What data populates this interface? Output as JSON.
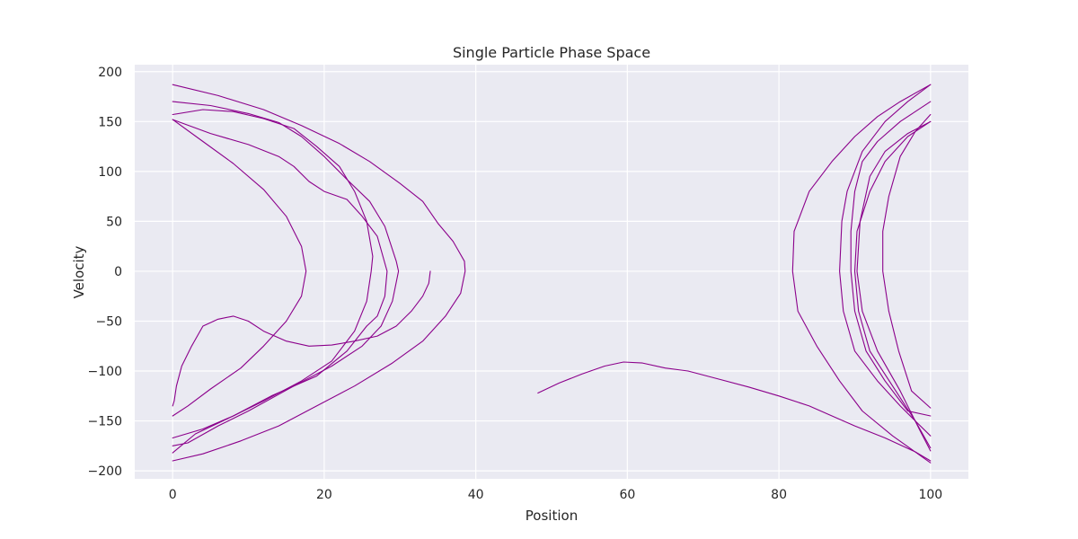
{
  "chart_data": {
    "type": "scatter",
    "title": "Single Particle Phase Space",
    "xlabel": "Position",
    "ylabel": "Velocity",
    "xlim": [
      -5,
      105
    ],
    "ylim": [
      -208,
      207
    ],
    "xticks": [
      0,
      20,
      40,
      60,
      80,
      100
    ],
    "yticks": [
      200,
      150,
      100,
      50,
      0,
      -50,
      -100,
      -150,
      -200
    ],
    "grid": true,
    "background": "#eaeaf2",
    "grid_color": "#ffffff",
    "series": [
      {
        "color": "#8b008b",
        "segments": [
          [
            [
              34.0,
              0
            ],
            [
              33.8,
              -12
            ],
            [
              33,
              -25
            ],
            [
              31.5,
              -40
            ],
            [
              29.5,
              -55
            ],
            [
              27,
              -65
            ],
            [
              24,
              -70
            ],
            [
              21,
              -74
            ],
            [
              18,
              -75
            ],
            [
              15,
              -70
            ],
            [
              12,
              -60
            ],
            [
              10,
              -50
            ],
            [
              8,
              -45
            ],
            [
              6,
              -48
            ],
            [
              4,
              -55
            ],
            [
              2.5,
              -75
            ],
            [
              1.2,
              -95
            ],
            [
              0.5,
              -115
            ],
            [
              0.2,
              -130
            ],
            [
              0,
              -135
            ]
          ],
          [
            [
              0,
              152
            ],
            [
              4,
              130
            ],
            [
              8,
              108
            ],
            [
              12,
              82
            ],
            [
              15,
              55
            ],
            [
              17,
              25
            ],
            [
              17.6,
              0
            ],
            [
              17,
              -25
            ],
            [
              15,
              -50
            ],
            [
              12,
              -75
            ],
            [
              9,
              -97
            ],
            [
              5,
              -118
            ],
            [
              2,
              -135
            ],
            [
              0,
              -145
            ]
          ],
          [
            [
              0,
              157
            ],
            [
              4,
              162
            ],
            [
              8,
              160
            ],
            [
              12,
              153
            ],
            [
              16,
              143
            ],
            [
              19,
              125
            ],
            [
              22,
              105
            ],
            [
              24,
              80
            ],
            [
              25.6,
              50
            ],
            [
              26.4,
              15
            ],
            [
              26.2,
              0
            ],
            [
              25.6,
              -30
            ],
            [
              24,
              -60
            ],
            [
              21,
              -90
            ],
            [
              17,
              -110
            ],
            [
              12,
              -130
            ],
            [
              8,
              -145
            ],
            [
              4,
              -158
            ],
            [
              0,
              -167
            ]
          ],
          [
            [
              0,
              170
            ],
            [
              5,
              166
            ],
            [
              10,
              158
            ],
            [
              14,
              149
            ],
            [
              17,
              135
            ],
            [
              20,
              115
            ],
            [
              23,
              92
            ],
            [
              26,
              70
            ],
            [
              28,
              45
            ],
            [
              29.5,
              10
            ],
            [
              29.8,
              0
            ],
            [
              29,
              -30
            ],
            [
              27.5,
              -55
            ],
            [
              25,
              -75
            ],
            [
              21,
              -95
            ],
            [
              16,
              -115
            ],
            [
              10,
              -140
            ],
            [
              6,
              -155
            ],
            [
              2,
              -172
            ],
            [
              0,
              -175
            ]
          ],
          [
            [
              0,
              152
            ],
            [
              5,
              138
            ],
            [
              10,
              127
            ],
            [
              14,
              115
            ],
            [
              16,
              105
            ],
            [
              18,
              90
            ],
            [
              20,
              80
            ],
            [
              23,
              72
            ],
            [
              25,
              55
            ],
            [
              27,
              35
            ],
            [
              28.3,
              0
            ],
            [
              28,
              -25
            ],
            [
              27,
              -45
            ],
            [
              25.6,
              -55
            ],
            [
              23,
              -80
            ],
            [
              19,
              -105
            ],
            [
              13,
              -125
            ],
            [
              8,
              -145
            ],
            [
              3,
              -163
            ],
            [
              0,
              -182
            ]
          ],
          [
            [
              0,
              187
            ],
            [
              6,
              176
            ],
            [
              12,
              162
            ],
            [
              17,
              146
            ],
            [
              22,
              128
            ],
            [
              26,
              110
            ],
            [
              30,
              88
            ],
            [
              33,
              70
            ],
            [
              35,
              48
            ],
            [
              37,
              30
            ],
            [
              38.5,
              10
            ],
            [
              38.6,
              0
            ],
            [
              38,
              -22
            ],
            [
              36,
              -45
            ],
            [
              33,
              -70
            ],
            [
              29,
              -92
            ],
            [
              24,
              -115
            ],
            [
              19,
              -135
            ],
            [
              14,
              -155
            ],
            [
              9,
              -170
            ],
            [
              4,
              -183
            ],
            [
              0,
              -190
            ]
          ],
          [
            [
              48.2,
              -122
            ],
            [
              51,
              -112
            ],
            [
              54,
              -103
            ],
            [
              57,
              -95
            ],
            [
              59.5,
              -91
            ],
            [
              62,
              -92
            ],
            [
              65,
              -97
            ],
            [
              68,
              -100
            ],
            [
              72,
              -108
            ],
            [
              76,
              -116
            ],
            [
              80,
              -125
            ],
            [
              84,
              -135
            ],
            [
              87,
              -145
            ],
            [
              90,
              -155
            ],
            [
              94,
              -167
            ],
            [
              98,
              -181
            ],
            [
              100,
              -190
            ]
          ],
          [
            [
              100,
              187
            ],
            [
              97,
              170
            ],
            [
              94,
              150
            ],
            [
              91,
              120
            ],
            [
              89,
              80
            ],
            [
              88.3,
              50
            ],
            [
              88,
              0
            ],
            [
              88.5,
              -40
            ],
            [
              90,
              -80
            ],
            [
              93,
              -110
            ],
            [
              96,
              -135
            ],
            [
              98,
              -150
            ],
            [
              100,
              -165
            ]
          ],
          [
            [
              100,
              170
            ],
            [
              96,
              150
            ],
            [
              93,
              130
            ],
            [
              91,
              110
            ],
            [
              90,
              80
            ],
            [
              89.5,
              40
            ],
            [
              89.5,
              0
            ],
            [
              90,
              -40
            ],
            [
              91.5,
              -80
            ],
            [
              94,
              -110
            ],
            [
              97,
              -140
            ],
            [
              100,
              -145
            ]
          ],
          [
            [
              100,
              150
            ],
            [
              97,
              135
            ],
            [
              94,
              110
            ],
            [
              92,
              80
            ],
            [
              90.3,
              40
            ],
            [
              90,
              0
            ],
            [
              90.5,
              -40
            ],
            [
              92,
              -80
            ],
            [
              95,
              -115
            ],
            [
              98,
              -150
            ],
            [
              100,
              -177
            ]
          ],
          [
            [
              100,
              150
            ],
            [
              97,
              138
            ],
            [
              94,
              120
            ],
            [
              92,
              95
            ],
            [
              90.7,
              50
            ],
            [
              90.3,
              0
            ],
            [
              91,
              -40
            ],
            [
              93,
              -80
            ],
            [
              96,
              -120
            ],
            [
              98.5,
              -158
            ],
            [
              100,
              -180
            ]
          ],
          [
            [
              100,
              157
            ],
            [
              98,
              140
            ],
            [
              96,
              115
            ],
            [
              94.5,
              75
            ],
            [
              93.7,
              40
            ],
            [
              93.7,
              0
            ],
            [
              94.5,
              -40
            ],
            [
              95.8,
              -80
            ],
            [
              97.5,
              -120
            ],
            [
              100,
              -137
            ]
          ],
          [
            [
              100,
              187
            ],
            [
              96,
              170
            ],
            [
              93,
              155
            ],
            [
              90,
              135
            ],
            [
              87,
              110
            ],
            [
              84,
              80
            ],
            [
              82,
              40
            ],
            [
              81.8,
              0
            ],
            [
              82.5,
              -40
            ],
            [
              85,
              -75
            ],
            [
              88,
              -110
            ],
            [
              91,
              -140
            ],
            [
              95,
              -165
            ],
            [
              100,
              -192
            ]
          ]
        ]
      }
    ]
  }
}
